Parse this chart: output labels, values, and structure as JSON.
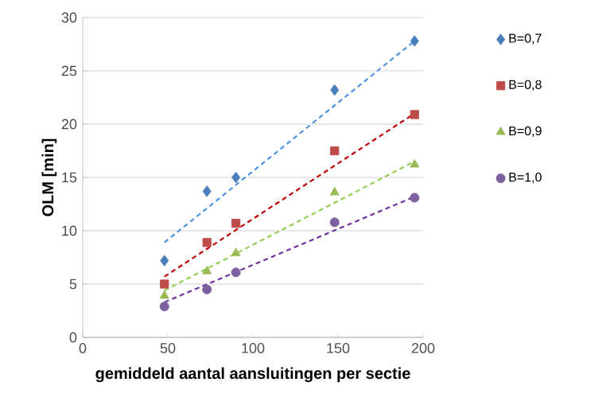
{
  "chart_data": {
    "type": "scatter",
    "xlabel": "gemiddeld aantal aansluitingen per sectie",
    "ylabel": "OLM [min]",
    "xlim": [
      0,
      200
    ],
    "xticks": [
      0,
      50,
      100,
      150,
      200
    ],
    "ylim": [
      0,
      30
    ],
    "yticks": [
      0,
      5,
      10,
      15,
      20,
      25,
      30
    ],
    "grid": "y",
    "legend": "right",
    "series": [
      {
        "name": "B=0,7",
        "color": "#4a7ebb",
        "marker": "diamond",
        "x": [
          48,
          73,
          90,
          148,
          195
        ],
        "values": [
          7.2,
          13.7,
          15.0,
          23.2,
          27.8
        ]
      },
      {
        "name": "B=0,8",
        "color": "#be4b48",
        "marker": "square",
        "x": [
          48,
          73,
          90,
          148,
          195
        ],
        "values": [
          5.0,
          8.9,
          10.7,
          17.5,
          20.9
        ]
      },
      {
        "name": "B=0,9",
        "color": "#98b954",
        "marker": "triangle",
        "x": [
          48,
          73,
          90,
          148,
          195
        ],
        "values": [
          3.9,
          6.2,
          7.9,
          13.6,
          16.2
        ]
      },
      {
        "name": "B=1,0",
        "color": "#7d60a0",
        "marker": "circle",
        "x": [
          48,
          73,
          90,
          148,
          195
        ],
        "values": [
          2.9,
          4.5,
          6.1,
          10.8,
          13.1
        ]
      },
      {
        "type": "line",
        "color": "#4f94e0",
        "marker": "none",
        "line_style": "dashed",
        "x": [
          48,
          195
        ],
        "values": [
          8.9,
          27.8
        ]
      },
      {
        "type": "line",
        "color": "#c00000",
        "marker": "none",
        "line_style": "dashed",
        "x": [
          48,
          195
        ],
        "values": [
          5.7,
          21.0
        ]
      },
      {
        "type": "line",
        "color": "#92d050",
        "marker": "none",
        "line_style": "dashed",
        "x": [
          48,
          195
        ],
        "values": [
          4.4,
          16.5
        ]
      },
      {
        "type": "line",
        "color": "#7030a0",
        "marker": "none",
        "line_style": "dashed",
        "x": [
          48,
          195
        ],
        "values": [
          3.3,
          13.2
        ]
      }
    ]
  }
}
